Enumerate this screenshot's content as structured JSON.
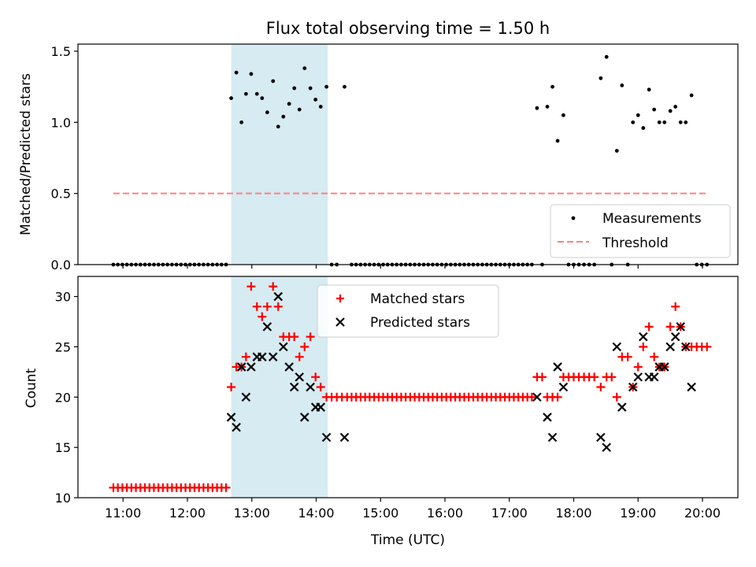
{
  "chart_data": [
    {
      "type": "scatter",
      "title": "Flux total observing time = 1.50 h",
      "xlabel": "",
      "ylabel": "Matched/Predicted stars",
      "ylim": [
        0,
        1.55
      ],
      "yticks": [
        0.0,
        0.5,
        1.0,
        1.5
      ],
      "ytick_labels": [
        "0.0",
        "0.5",
        "1.0",
        "1.5"
      ],
      "x_unit": "hours UTC",
      "xlim": [
        10.3,
        20.55
      ],
      "shaded_span": [
        12.68,
        14.18
      ],
      "legend": {
        "position": "lower-right",
        "entries": [
          "Measurements",
          "Threshold"
        ]
      },
      "threshold": {
        "name": "Threshold",
        "value": 0.5,
        "x_range": [
          10.85,
          20.05
        ],
        "color": "#ff7f7f"
      },
      "series": [
        {
          "name": "Measurements",
          "color": "#000000",
          "x": [
            10.85,
            10.92,
            10.99,
            11.06,
            11.13,
            11.2,
            11.27,
            11.34,
            11.41,
            11.48,
            11.55,
            11.62,
            11.69,
            11.76,
            11.83,
            11.9,
            11.97,
            12.04,
            12.11,
            12.18,
            12.25,
            12.32,
            12.39,
            12.46,
            12.53,
            12.6,
            12.68,
            12.76,
            12.84,
            12.91,
            12.99,
            13.08,
            13.16,
            13.24,
            13.33,
            13.41,
            13.49,
            13.58,
            13.66,
            13.74,
            13.82,
            13.91,
            13.99,
            14.07,
            14.16,
            14.24,
            14.32,
            14.44,
            14.55,
            14.62,
            14.69,
            14.76,
            14.83,
            14.9,
            14.97,
            15.04,
            15.11,
            15.18,
            15.25,
            15.32,
            15.39,
            15.46,
            15.53,
            15.6,
            15.67,
            15.74,
            15.81,
            15.88,
            15.95,
            16.02,
            16.09,
            16.16,
            16.23,
            16.3,
            16.37,
            16.44,
            16.51,
            16.58,
            16.65,
            16.72,
            16.79,
            16.86,
            16.93,
            17.0,
            17.07,
            17.14,
            17.21,
            17.28,
            17.35,
            17.43,
            17.51,
            17.59,
            17.67,
            17.75,
            17.84,
            17.92,
            18.0,
            18.08,
            18.16,
            18.24,
            18.32,
            18.42,
            18.51,
            18.59,
            18.67,
            18.75,
            18.84,
            18.92,
            19.0,
            19.08,
            19.17,
            19.25,
            19.33,
            19.41,
            19.5,
            19.58,
            19.66,
            19.74,
            19.83,
            19.91,
            19.99,
            20.07
          ],
          "y": [
            0,
            0,
            0,
            0,
            0,
            0,
            0,
            0,
            0,
            0,
            0,
            0,
            0,
            0,
            0,
            0,
            0,
            0,
            0,
            0,
            0,
            0,
            0,
            0,
            0,
            0,
            1.17,
            1.35,
            1.0,
            1.2,
            1.34,
            1.2,
            1.17,
            1.07,
            1.29,
            0.97,
            1.04,
            1.13,
            1.24,
            1.09,
            1.38,
            1.24,
            1.16,
            1.11,
            1.25,
            0,
            0,
            1.25,
            0,
            0,
            0,
            0,
            0,
            0,
            0,
            0,
            0,
            0,
            0,
            0,
            0,
            0,
            0,
            0,
            0,
            0,
            0,
            0,
            0,
            0,
            0,
            0,
            0,
            0,
            0,
            0,
            0,
            0,
            0,
            0,
            0,
            0,
            0,
            0,
            0,
            0,
            0,
            0,
            0,
            1.1,
            0,
            1.11,
            1.25,
            0.87,
            1.05,
            0,
            0,
            0,
            0,
            0,
            0,
            1.31,
            1.46,
            0,
            0.8,
            1.26,
            0,
            1.0,
            1.05,
            0.96,
            1.23,
            1.09,
            1.0,
            1.0,
            1.08,
            1.11,
            1.0,
            1.0,
            1.19,
            0,
            0,
            0
          ]
        }
      ]
    },
    {
      "type": "scatter",
      "title": "",
      "xlabel": "Time (UTC)",
      "ylabel": "Count",
      "ylim": [
        10,
        32
      ],
      "yticks": [
        10,
        15,
        20,
        25,
        30
      ],
      "ytick_labels": [
        "10",
        "15",
        "20",
        "25",
        "30"
      ],
      "x_unit": "hours UTC",
      "xlim": [
        10.3,
        20.55
      ],
      "xticks": [
        11,
        12,
        13,
        14,
        15,
        16,
        17,
        18,
        19,
        20
      ],
      "xtick_labels": [
        "11:00",
        "12:00",
        "13:00",
        "14:00",
        "15:00",
        "16:00",
        "17:00",
        "18:00",
        "19:00",
        "20:00"
      ],
      "shaded_span": [
        12.68,
        14.18
      ],
      "legend": {
        "position": "top-center",
        "entries": [
          "Matched stars",
          "Predicted stars"
        ]
      },
      "series": [
        {
          "name": "Matched stars",
          "marker": "plus",
          "color": "#ff0000",
          "x": [
            10.85,
            10.92,
            10.99,
            11.06,
            11.13,
            11.2,
            11.27,
            11.34,
            11.41,
            11.48,
            11.55,
            11.62,
            11.69,
            11.76,
            11.83,
            11.9,
            11.97,
            12.04,
            12.11,
            12.18,
            12.25,
            12.32,
            12.39,
            12.46,
            12.53,
            12.6,
            12.68,
            12.76,
            12.84,
            12.91,
            12.99,
            13.08,
            13.16,
            13.24,
            13.33,
            13.41,
            13.49,
            13.58,
            13.66,
            13.74,
            13.82,
            13.91,
            13.99,
            14.07,
            14.16,
            14.24,
            14.32,
            14.4,
            14.48,
            14.55,
            14.62,
            14.69,
            14.76,
            14.83,
            14.9,
            14.97,
            15.04,
            15.11,
            15.18,
            15.25,
            15.32,
            15.39,
            15.46,
            15.53,
            15.6,
            15.67,
            15.74,
            15.81,
            15.88,
            15.95,
            16.02,
            16.09,
            16.16,
            16.23,
            16.3,
            16.37,
            16.44,
            16.51,
            16.58,
            16.65,
            16.72,
            16.79,
            16.86,
            16.93,
            17.0,
            17.07,
            17.14,
            17.21,
            17.28,
            17.35,
            17.43,
            17.51,
            17.59,
            17.67,
            17.75,
            17.84,
            17.92,
            18.0,
            18.08,
            18.16,
            18.24,
            18.32,
            18.42,
            18.51,
            18.59,
            18.67,
            18.75,
            18.84,
            18.92,
            19.0,
            19.08,
            19.17,
            19.25,
            19.33,
            19.41,
            19.5,
            19.58,
            19.66,
            19.74,
            19.83,
            19.91,
            19.99,
            20.07
          ],
          "y": [
            11,
            11,
            11,
            11,
            11,
            11,
            11,
            11,
            11,
            11,
            11,
            11,
            11,
            11,
            11,
            11,
            11,
            11,
            11,
            11,
            11,
            11,
            11,
            11,
            11,
            11,
            21,
            23,
            23,
            24,
            31,
            29,
            28,
            29,
            31,
            29,
            26,
            26,
            26,
            24,
            25,
            26,
            22,
            21,
            20,
            20,
            20,
            20,
            20,
            20,
            20,
            20,
            20,
            20,
            20,
            20,
            20,
            20,
            20,
            20,
            20,
            20,
            20,
            20,
            20,
            20,
            20,
            20,
            20,
            20,
            20,
            20,
            20,
            20,
            20,
            20,
            20,
            20,
            20,
            20,
            20,
            20,
            20,
            20,
            20,
            20,
            20,
            20,
            20,
            20,
            22,
            22,
            20,
            20,
            20,
            22,
            22,
            22,
            22,
            22,
            22,
            22,
            21,
            22,
            22,
            20,
            24,
            24,
            21,
            23,
            25,
            27,
            24,
            23,
            23,
            27,
            29,
            27,
            25,
            25,
            25,
            25,
            25
          ]
        },
        {
          "name": "Predicted stars",
          "marker": "cross",
          "color": "#000000",
          "x": [
            12.68,
            12.76,
            12.84,
            12.91,
            12.99,
            13.08,
            13.16,
            13.24,
            13.33,
            13.41,
            13.49,
            13.58,
            13.66,
            13.74,
            13.82,
            13.91,
            13.99,
            14.07,
            14.16,
            14.44,
            17.43,
            17.59,
            17.67,
            17.75,
            17.84,
            18.42,
            18.51,
            18.67,
            18.75,
            18.92,
            19.0,
            19.08,
            19.17,
            19.25,
            19.33,
            19.41,
            19.5,
            19.58,
            19.66,
            19.74,
            19.83
          ],
          "y": [
            18,
            17,
            23,
            20,
            23,
            24,
            24,
            27,
            24,
            30,
            25,
            23,
            21,
            22,
            18,
            21,
            19,
            19,
            16,
            16,
            20,
            18,
            16,
            23,
            21,
            16,
            15,
            25,
            19,
            21,
            22,
            26,
            22,
            22,
            23,
            23,
            25,
            26,
            27,
            25,
            21
          ]
        }
      ]
    }
  ]
}
